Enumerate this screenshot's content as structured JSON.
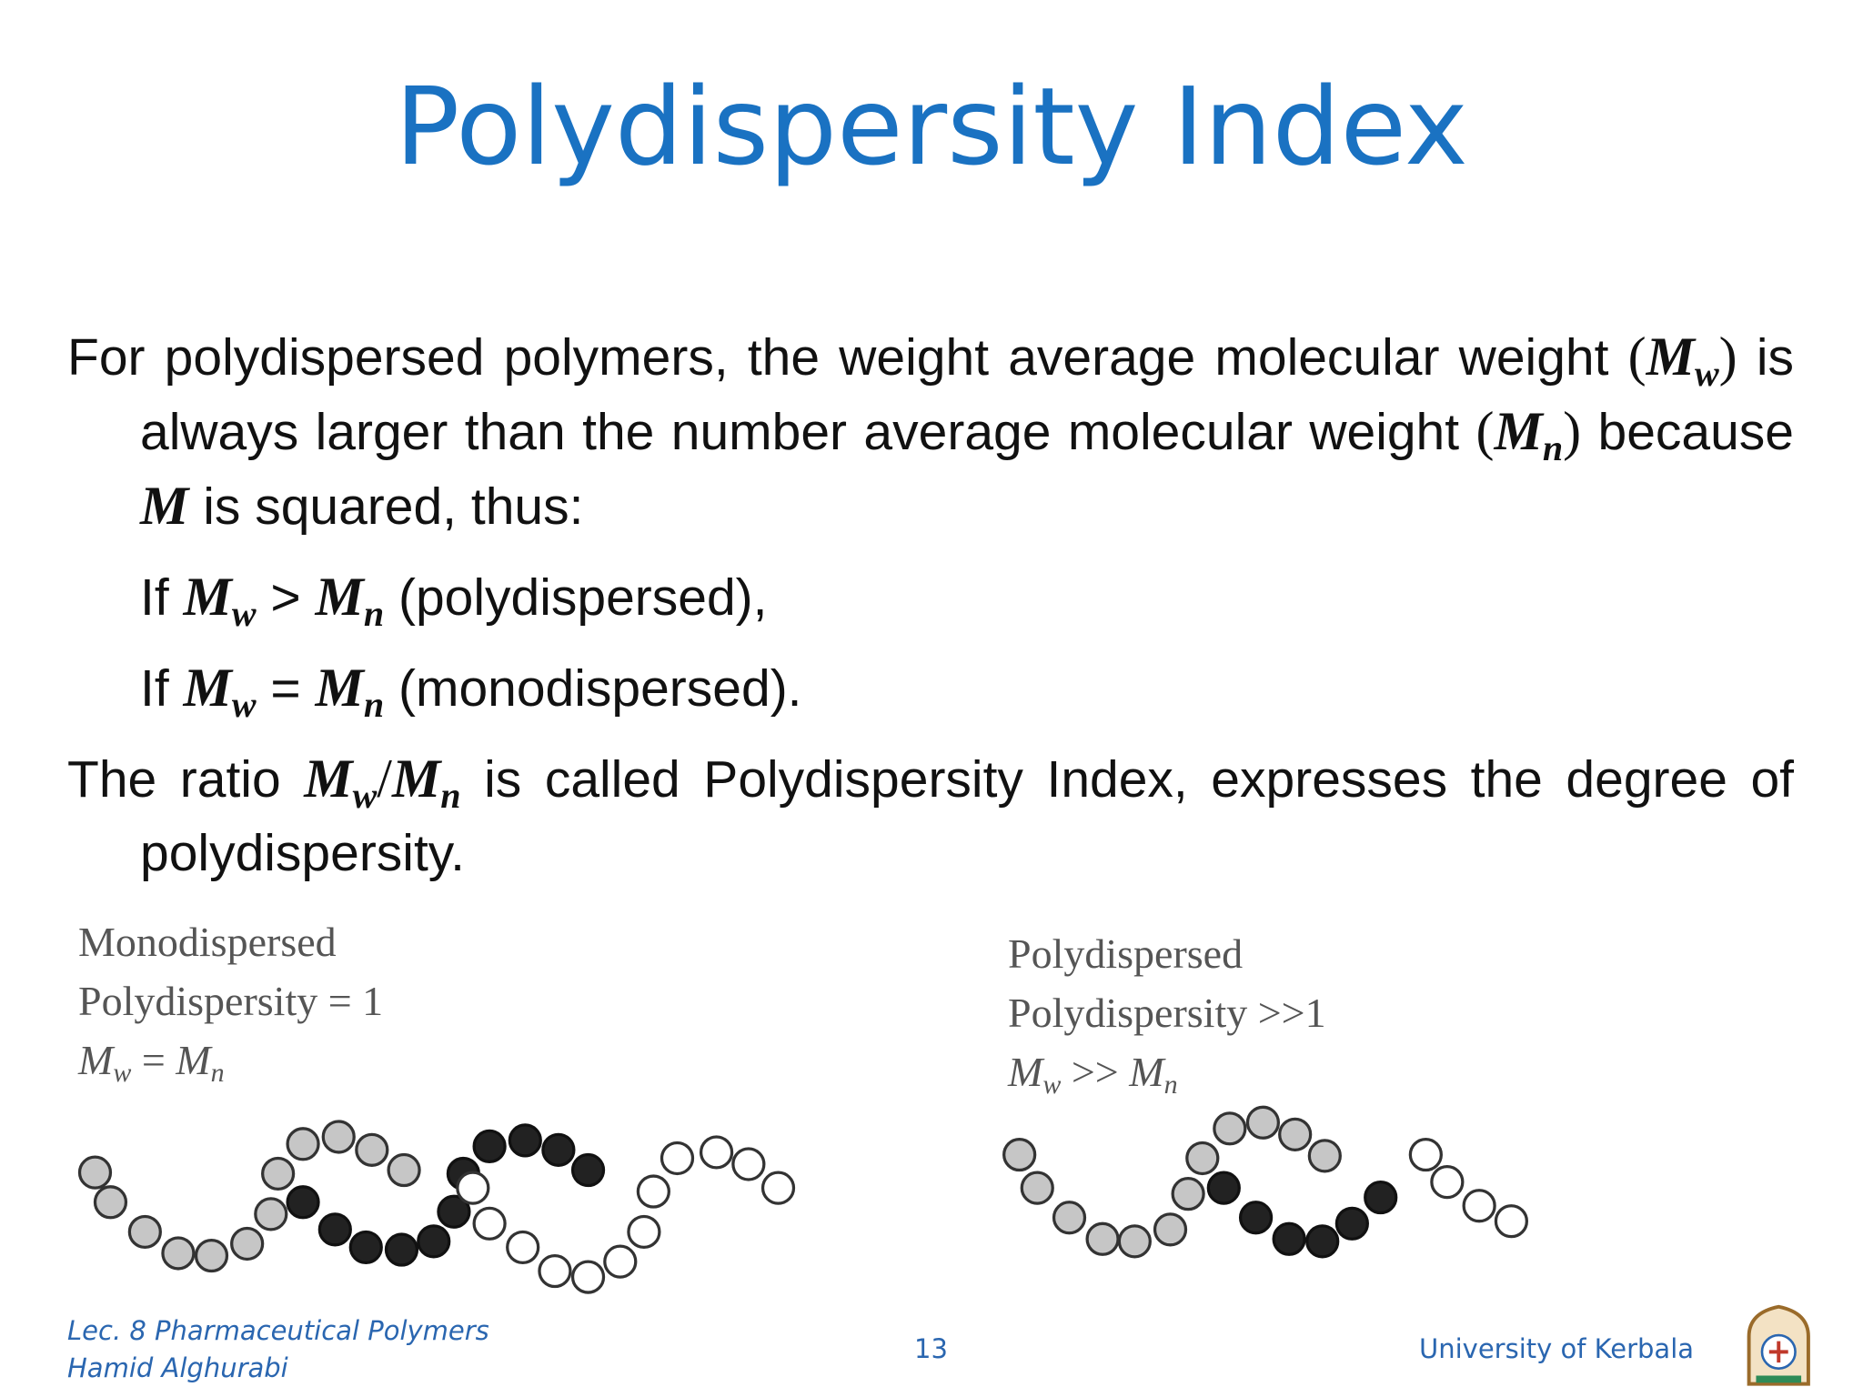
{
  "title": "Polydispersity Index",
  "paragraphs": [
    {
      "runs": [
        {
          "text": "For polydispersed polymers, the weight average molecular weight "
        },
        {
          "math": "("
        },
        {
          "math": "M",
          "sub": "w"
        },
        {
          "math": ")"
        },
        {
          "text": " is always larger than the number average molecular weight "
        },
        {
          "math": "("
        },
        {
          "math": "M",
          "sub": "n"
        },
        {
          "math": ")"
        },
        {
          "text": " because "
        },
        {
          "math": "M"
        },
        {
          "text": " is squared, thus:"
        }
      ]
    },
    {
      "runs": [
        {
          "text": "If "
        },
        {
          "math": "M",
          "sub": "w"
        },
        {
          "text": " > "
        },
        {
          "math": "M",
          "sub": "n"
        },
        {
          "text": " (polydispersed),"
        }
      ]
    },
    {
      "runs": [
        {
          "text": "If "
        },
        {
          "math": "M",
          "sub": "w"
        },
        {
          "text": " = "
        },
        {
          "math": "M",
          "sub": "n"
        },
        {
          "text": " (monodispersed)."
        }
      ]
    },
    {
      "runs": [
        {
          "text": "The ratio "
        },
        {
          "math": "M",
          "sub": "w"
        },
        {
          "math": "/"
        },
        {
          "math": "M",
          "sub": "n"
        },
        {
          "text": " is called Polydispersity Index, expresses the degree of polydispersity."
        }
      ]
    }
  ],
  "figures": [
    {
      "lines": [
        {
          "runs": [
            {
              "text": "Monodispersed"
            }
          ]
        },
        {
          "runs": [
            {
              "text": "Polydispersity = 1"
            }
          ]
        },
        {
          "runs": [
            {
              "math": "M",
              "sub": "w"
            },
            {
              "text": " = "
            },
            {
              "math": "M",
              "sub": "n"
            }
          ]
        }
      ]
    },
    {
      "lines": [
        {
          "runs": [
            {
              "text": "Polydispersed"
            }
          ]
        },
        {
          "runs": [
            {
              "text": "Polydispersity >>1"
            }
          ]
        },
        {
          "runs": [
            {
              "math": "M",
              "sub": "w"
            },
            {
              "text": " >> "
            },
            {
              "math": "M",
              "sub": "n"
            }
          ]
        }
      ]
    }
  ],
  "footer": {
    "course": "Lec. 8 Pharmaceutical Polymers",
    "author": "Hamid Alghurabi",
    "page": "13",
    "university": "University of Kerbala"
  }
}
